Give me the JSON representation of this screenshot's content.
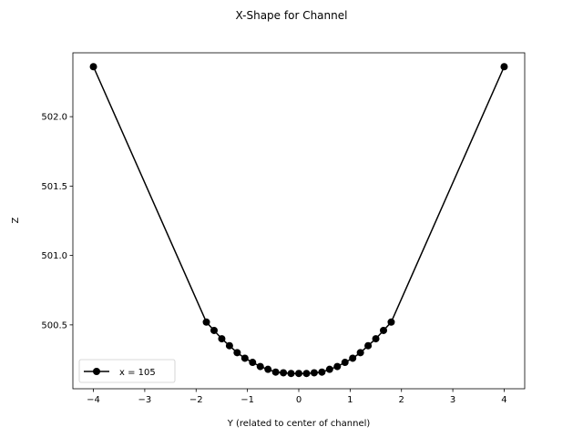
{
  "chart_data": {
    "type": "line",
    "title": "X-Shape for Channel",
    "xlabel": "Y (related to center of channel)",
    "ylabel": "Z",
    "xlim": [
      -4.4,
      4.4
    ],
    "ylim": [
      500.04,
      502.46
    ],
    "xticks": [
      -4,
      -3,
      -2,
      -1,
      0,
      1,
      2,
      3,
      4
    ],
    "xtick_labels": [
      "−4",
      "−3",
      "−2",
      "−1",
      "0",
      "1",
      "2",
      "3",
      "4"
    ],
    "yticks": [
      500.5,
      501.0,
      501.5,
      502.0
    ],
    "ytick_labels": [
      "500.5",
      "501.0",
      "501.5",
      "502.0"
    ],
    "grid": false,
    "legend_position": "lower-left",
    "color": "#000000",
    "series": [
      {
        "name": "x = 105",
        "x": [
          -4.0,
          -1.8,
          -1.65,
          -1.5,
          -1.35,
          -1.2,
          -1.05,
          -0.9,
          -0.75,
          -0.6,
          -0.45,
          -0.3,
          -0.15,
          0.0,
          0.15,
          0.3,
          0.45,
          0.6,
          0.75,
          0.9,
          1.05,
          1.2,
          1.35,
          1.5,
          1.65,
          1.8,
          4.0
        ],
        "y": [
          502.36,
          500.52,
          500.46,
          500.4,
          500.35,
          500.3,
          500.26,
          500.23,
          500.2,
          500.18,
          500.16,
          500.155,
          500.15,
          500.15,
          500.15,
          500.155,
          500.16,
          500.18,
          500.2,
          500.23,
          500.26,
          500.3,
          500.35,
          500.4,
          500.46,
          500.52,
          502.36
        ]
      }
    ]
  }
}
